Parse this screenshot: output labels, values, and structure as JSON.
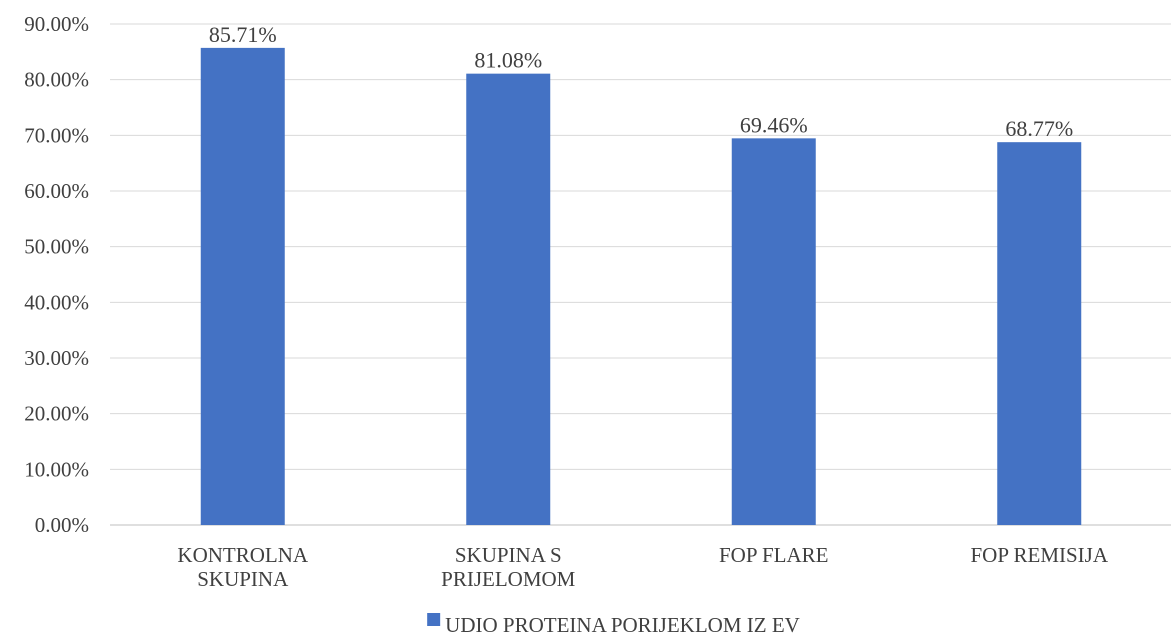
{
  "chart_data": {
    "type": "bar",
    "categories": [
      [
        "KONTROLNA",
        "SKUPINA"
      ],
      [
        "SKUPINA S",
        "PRIJELOMOM"
      ],
      [
        "FOP FLARE"
      ],
      [
        "FOP REMISIJA"
      ]
    ],
    "series": [
      {
        "name": "UDIO PROTEINA PORIJEKLOM IZ EV",
        "values": [
          85.71,
          81.08,
          69.46,
          68.77
        ],
        "labels": [
          "85.71%",
          "81.08%",
          "69.46%",
          "68.77%"
        ],
        "color": "#4472C4"
      }
    ],
    "ylim": [
      0,
      90
    ],
    "yticks": [
      0,
      10,
      20,
      30,
      40,
      50,
      60,
      70,
      80,
      90
    ],
    "ytick_labels": [
      "0.00%",
      "10.00%",
      "20.00%",
      "30.00%",
      "40.00%",
      "50.00%",
      "60.00%",
      "70.00%",
      "80.00%",
      "90.00%"
    ],
    "grid": true,
    "legend": "bottom",
    "title": "",
    "xlabel": "",
    "ylabel": ""
  }
}
